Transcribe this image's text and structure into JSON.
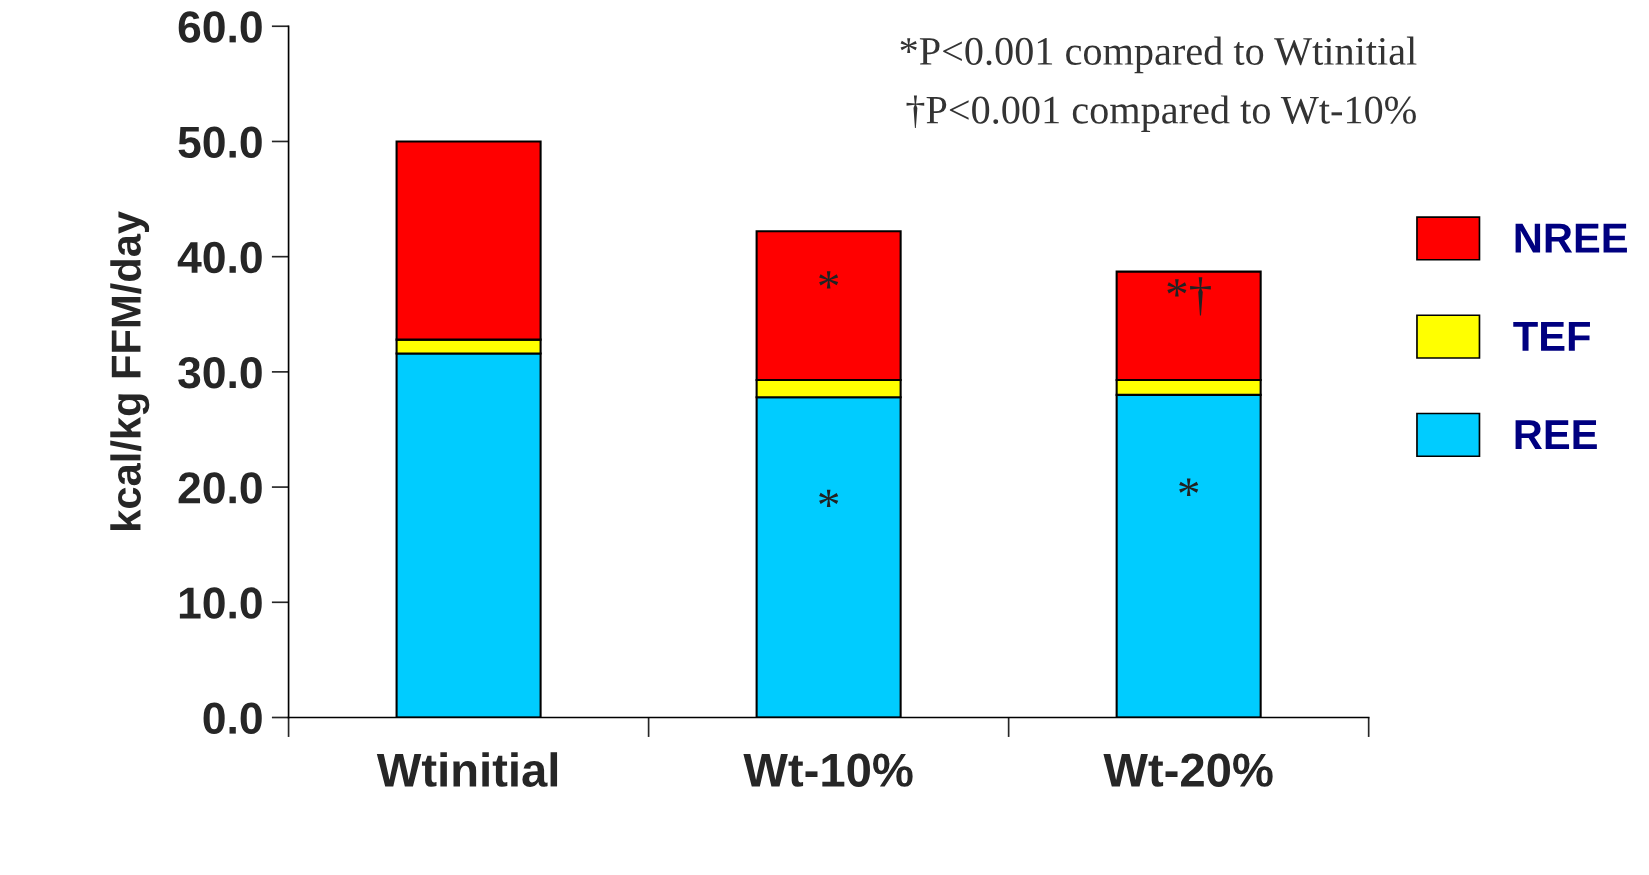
{
  "chart_data": {
    "type": "bar",
    "ylabel": "kcal/kg FFM/day",
    "categories": [
      "Wtinitial",
      "Wt-10%",
      "Wt-20%"
    ],
    "stacked": true,
    "series": [
      {
        "name": "REE",
        "color": "#00ccff",
        "values": [
          31.6,
          27.8,
          28.0
        ]
      },
      {
        "name": "TEF",
        "color": "#ffff00",
        "values": [
          1.2,
          1.5,
          1.3
        ]
      },
      {
        "name": "NREE",
        "color": "#ff0000",
        "values": [
          17.2,
          12.9,
          9.4
        ]
      }
    ],
    "ylim": [
      0,
      60
    ],
    "yticks": [
      {
        "value": 0,
        "label": "0.0"
      },
      {
        "value": 10,
        "label": "10.0"
      },
      {
        "value": 20,
        "label": "20.0"
      },
      {
        "value": 30,
        "label": "30.0"
      },
      {
        "value": 40,
        "label": "40.0"
      },
      {
        "value": 50,
        "label": "50.0"
      },
      {
        "value": 60,
        "label": "60.0"
      }
    ],
    "grid": false,
    "legend": "right",
    "annotations": [
      "*P<0.001 compared to Wtinitial",
      "†P<0.001 compared to Wt-10%",
      "*",
      "*",
      "*†",
      "*"
    ]
  }
}
